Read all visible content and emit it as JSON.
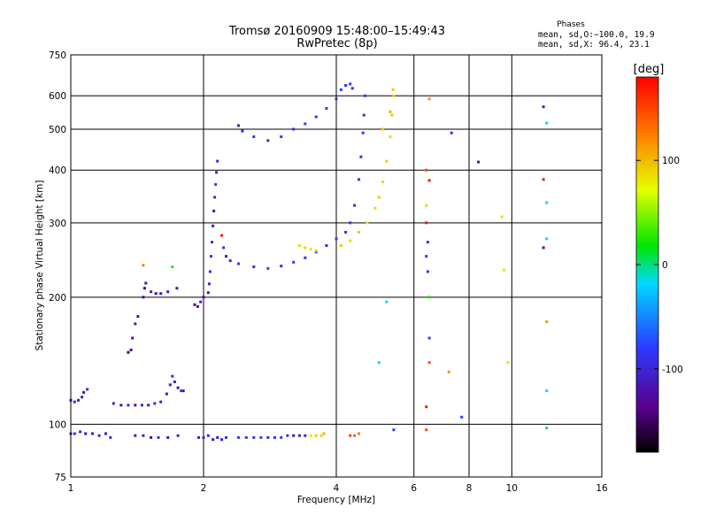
{
  "chart_data": {
    "type": "scatter",
    "title": "Tromsø 20160909 15:48:00–15:49:43",
    "subtitle": "RwPretec (8p)",
    "xlabel": "Frequency [MHz]",
    "ylabel": "Stationary phase Virtual Height [km]",
    "x_scale": "log",
    "y_scale": "log",
    "xlim": [
      1,
      16
    ],
    "ylim": [
      75,
      750
    ],
    "x_ticks": [
      1,
      2,
      4,
      6,
      8,
      10,
      16
    ],
    "y_ticks": [
      75,
      100,
      200,
      300,
      400,
      500,
      600,
      750
    ],
    "grid": true,
    "stats_title": "Phases",
    "stats_line1": "mean, sd,O:−100.0, 19.9",
    "stats_line2": "mean, sd,X:  96.4, 23.1",
    "colorbar_label": "[deg]",
    "colorbar_ticks": [
      100,
      0,
      -100
    ],
    "colorbar_range": [
      -180,
      180
    ],
    "series": [
      {
        "trace": "low_layer",
        "points": [
          [
            1.0,
            95,
            -120
          ],
          [
            1.02,
            95,
            -110
          ],
          [
            1.05,
            96,
            -115
          ],
          [
            1.08,
            95,
            -130
          ],
          [
            1.12,
            95,
            -120
          ],
          [
            1.16,
            94,
            -115
          ],
          [
            1.2,
            95,
            -125
          ],
          [
            1.23,
            93,
            -110
          ],
          [
            1.4,
            94,
            -130
          ],
          [
            1.46,
            94,
            -120
          ],
          [
            1.52,
            93,
            -140
          ],
          [
            1.58,
            93,
            -110
          ],
          [
            1.66,
            93,
            -130
          ],
          [
            1.75,
            94,
            -120
          ],
          [
            1.95,
            93,
            -120
          ],
          [
            2.0,
            93,
            -115
          ],
          [
            2.05,
            94,
            -110
          ],
          [
            2.1,
            92,
            -125
          ],
          [
            2.15,
            93,
            -120
          ],
          [
            2.2,
            92,
            -115
          ],
          [
            2.25,
            93,
            -110
          ],
          [
            2.4,
            93,
            -100
          ],
          [
            2.5,
            93,
            -105
          ],
          [
            2.6,
            93,
            -110
          ],
          [
            2.7,
            93,
            -100
          ],
          [
            2.8,
            93,
            -105
          ],
          [
            2.9,
            93,
            -110
          ],
          [
            3.0,
            93,
            -100
          ],
          [
            3.1,
            94,
            -110
          ],
          [
            3.2,
            94,
            -130
          ],
          [
            3.3,
            94,
            -120
          ],
          [
            3.4,
            94,
            -110
          ],
          [
            3.5,
            94,
            90
          ],
          [
            3.6,
            94,
            100
          ],
          [
            3.7,
            94,
            95
          ],
          [
            3.75,
            95,
            110
          ],
          [
            4.3,
            94,
            150
          ],
          [
            4.4,
            94,
            140
          ],
          [
            4.5,
            95,
            130
          ],
          [
            5.4,
            97,
            -100
          ],
          [
            6.4,
            97,
            150
          ]
        ]
      },
      {
        "trace": "e_region_cusps",
        "points": [
          [
            1.0,
            114,
            -120
          ],
          [
            1.02,
            113,
            -110
          ],
          [
            1.04,
            114,
            -125
          ],
          [
            1.06,
            116,
            -120
          ],
          [
            1.07,
            119,
            -130
          ],
          [
            1.09,
            121,
            -110
          ],
          [
            1.25,
            112,
            -120
          ],
          [
            1.3,
            111,
            -130
          ],
          [
            1.35,
            111,
            -110
          ],
          [
            1.4,
            111,
            -140
          ],
          [
            1.45,
            111,
            -120
          ],
          [
            1.5,
            111,
            -130
          ],
          [
            1.55,
            112,
            -110
          ],
          [
            1.6,
            113,
            -120
          ],
          [
            1.65,
            118,
            -130
          ],
          [
            1.68,
            124,
            -120
          ],
          [
            1.7,
            130,
            -110
          ],
          [
            1.72,
            126,
            -120
          ],
          [
            1.75,
            122,
            -130
          ],
          [
            1.78,
            120,
            -110
          ],
          [
            1.8,
            120,
            -120
          ],
          [
            1.35,
            148,
            -150
          ],
          [
            1.37,
            150,
            -140
          ],
          [
            1.38,
            160,
            -130
          ],
          [
            1.4,
            173,
            -120
          ],
          [
            1.42,
            180,
            -130
          ],
          [
            1.46,
            200,
            -140
          ],
          [
            1.47,
            210,
            -150
          ],
          [
            1.48,
            216,
            -130
          ],
          [
            1.52,
            206,
            -120
          ],
          [
            1.56,
            204,
            -140
          ],
          [
            1.6,
            204,
            -130
          ],
          [
            1.66,
            206,
            -120
          ],
          [
            1.74,
            210,
            -130
          ],
          [
            1.91,
            192,
            -140
          ],
          [
            1.94,
            190,
            -130
          ],
          [
            1.97,
            195,
            -120
          ],
          [
            2.0,
            200,
            -140
          ],
          [
            1.46,
            238,
            130
          ],
          [
            1.7,
            236,
            10
          ]
        ]
      },
      {
        "trace": "f_layer_main",
        "points": [
          [
            2.05,
            205,
            -130
          ],
          [
            2.06,
            215,
            -120
          ],
          [
            2.07,
            230,
            -110
          ],
          [
            2.08,
            250,
            -100
          ],
          [
            2.09,
            270,
            -110
          ],
          [
            2.1,
            295,
            -120
          ],
          [
            2.11,
            320,
            -130
          ],
          [
            2.12,
            345,
            -110
          ],
          [
            2.13,
            370,
            -100
          ],
          [
            2.14,
            395,
            -120
          ],
          [
            2.15,
            420,
            -110
          ],
          [
            2.2,
            280,
            170
          ],
          [
            2.22,
            262,
            -110
          ],
          [
            2.25,
            250,
            -120
          ],
          [
            2.3,
            244,
            -110
          ],
          [
            2.4,
            240,
            -100
          ],
          [
            2.6,
            236,
            -110
          ],
          [
            2.8,
            234,
            -100
          ],
          [
            3.0,
            237,
            -110
          ],
          [
            3.2,
            242,
            -100
          ],
          [
            3.4,
            248,
            -110
          ],
          [
            3.6,
            256,
            -100
          ],
          [
            3.8,
            265,
            -110
          ],
          [
            4.0,
            275,
            -100
          ],
          [
            4.2,
            285,
            -110
          ],
          [
            4.3,
            300,
            -100
          ],
          [
            4.4,
            330,
            -110
          ],
          [
            4.5,
            380,
            -100
          ],
          [
            4.55,
            430,
            -110
          ],
          [
            4.6,
            490,
            -100
          ],
          [
            4.62,
            540,
            -110
          ],
          [
            4.65,
            600,
            -100
          ],
          [
            2.4,
            510,
            -120
          ],
          [
            2.45,
            495,
            -110
          ],
          [
            2.6,
            480,
            -100
          ],
          [
            2.8,
            470,
            -110
          ],
          [
            3.0,
            480,
            -100
          ],
          [
            3.2,
            500,
            -110
          ],
          [
            3.4,
            515,
            -100
          ],
          [
            3.6,
            535,
            -110
          ],
          [
            3.8,
            560,
            -100
          ],
          [
            4.0,
            590,
            -110
          ],
          [
            4.1,
            620,
            -100
          ],
          [
            4.2,
            635,
            -110
          ],
          [
            4.3,
            640,
            -100
          ],
          [
            4.35,
            625,
            -110
          ]
        ]
      },
      {
        "trace": "x_mode_trace",
        "points": [
          [
            3.3,
            265,
            95
          ],
          [
            3.4,
            262,
            100
          ],
          [
            3.5,
            260,
            90
          ],
          [
            3.6,
            258,
            95
          ],
          [
            4.1,
            265,
            100
          ],
          [
            4.3,
            272,
            95
          ],
          [
            4.5,
            285,
            100
          ],
          [
            4.7,
            300,
            90
          ],
          [
            4.9,
            325,
            95
          ],
          [
            5.0,
            345,
            100
          ],
          [
            5.1,
            375,
            95
          ],
          [
            5.2,
            420,
            100
          ],
          [
            5.3,
            480,
            95
          ],
          [
            5.35,
            540,
            100
          ],
          [
            5.4,
            600,
            95
          ],
          [
            5.38,
            620,
            100
          ],
          [
            5.3,
            550,
            110
          ],
          [
            5.1,
            500,
            100
          ]
        ]
      },
      {
        "trace": "scatter_noise",
        "points": [
          [
            6.4,
            400,
            150
          ],
          [
            6.5,
            378,
            170
          ],
          [
            6.4,
            330,
            60
          ],
          [
            6.4,
            300,
            170
          ],
          [
            6.45,
            270,
            -110
          ],
          [
            6.4,
            250,
            -100
          ],
          [
            6.45,
            230,
            -110
          ],
          [
            6.5,
            200,
            10
          ],
          [
            6.5,
            160,
            -100
          ],
          [
            6.5,
            140,
            150
          ],
          [
            6.4,
            110,
            170
          ],
          [
            6.5,
            590,
            120
          ],
          [
            7.3,
            490,
            -110
          ],
          [
            7.2,
            133,
            120
          ],
          [
            7.7,
            104,
            -100
          ],
          [
            8.4,
            418,
            -130
          ],
          [
            9.5,
            310,
            90
          ],
          [
            9.6,
            232,
            90
          ],
          [
            9.8,
            140,
            90
          ],
          [
            11.8,
            565,
            -120
          ],
          [
            12.0,
            517,
            -20
          ],
          [
            11.8,
            380,
            170
          ],
          [
            12.0,
            335,
            -20
          ],
          [
            12.0,
            275,
            -20
          ],
          [
            11.8,
            262,
            -140
          ],
          [
            12.0,
            175,
            120
          ],
          [
            12.0,
            120,
            -20
          ],
          [
            12.0,
            98,
            -10
          ],
          [
            5.2,
            195,
            -20
          ],
          [
            5.0,
            140,
            -20
          ]
        ]
      }
    ]
  }
}
